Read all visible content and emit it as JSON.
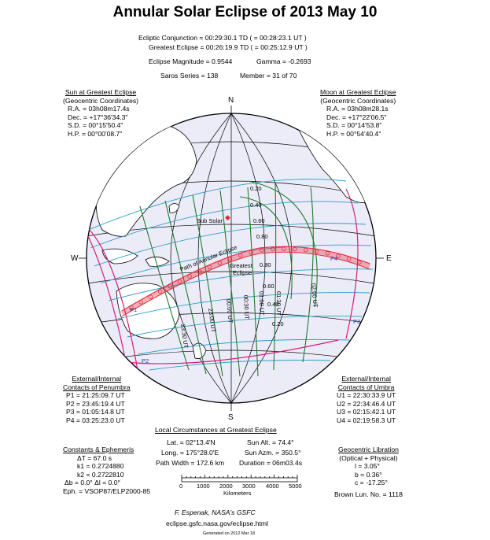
{
  "title": "Annular Solar Eclipse of  2013 May 10",
  "header": {
    "conjunction": "Ecliptic Conjunction = 00:29:30.1 TD   ( = 00:28:23.1 UT )",
    "greatest": "Greatest Eclipse = 00:26:19.9 TD   ( = 00:25:12.9 UT )",
    "magnitude": "Eclipse Magnitude = 0.9544",
    "gamma": "Gamma = -0.2693",
    "saros": "Saros Series = 138",
    "member": "Member = 31 of 70"
  },
  "sun": {
    "title": "Sun at Greatest Eclipse",
    "sub": "(Geocentric Coordinates)",
    "lines": [
      "R.A. = 03h08m17.4s",
      "Dec. = +17°36'34.3\"",
      "S.D. = 00°15'50.4\"",
      "H.P. = 00°00'08.7\""
    ]
  },
  "moon": {
    "title": "Moon at Greatest Eclipse",
    "sub": "(Geocentric Coordinates)",
    "lines": [
      "R.A. = 03h08m28.1s",
      "Dec. = +17°22'06.5\"",
      "S.D. = 00°14'53.8\"",
      "H.P. = 00°54'40.4\""
    ]
  },
  "compass": {
    "n": "N",
    "s": "S",
    "w": "W",
    "e": "E"
  },
  "map": {
    "sub_solar": "Sub Solar",
    "path_label": "Path of Annular Eclipse",
    "greatest_1": "Greatest",
    "greatest_2": "Eclipse",
    "magnitudes": [
      "0.20",
      "0.40",
      "0.60",
      "0.80",
      "0.80",
      "0.60",
      "0.40",
      "0.20"
    ],
    "times": [
      "23:30 UT",
      "23:00 UT",
      "00:00 UT",
      "00:30 UT",
      "01:00 UT",
      "01:30 UT",
      "02:00 UT"
    ],
    "points": [
      "P1",
      "P2",
      "P3",
      "P4"
    ],
    "colors": {
      "globe": "#ececf8",
      "grid": "#2a9fc8",
      "path": "#e8273a",
      "penumbra": "#d81b7a",
      "mag": "#1f7a2e",
      "time": "#1f7a2e",
      "outline": "#000000"
    }
  },
  "penumbra": {
    "title1": "External/Internal",
    "title2": "Contacts of Penumbra",
    "lines": [
      "P1 = 21:25:09.7 UT",
      "P2 = 23:45:19.4 UT",
      "P3 = 01:05:14.8 UT",
      "P4 = 03:25:23.0 UT"
    ]
  },
  "umbra": {
    "title1": "External/Internal",
    "title2": "Contacts of Umbra",
    "lines": [
      "U1 = 22:30:33.9 UT",
      "U2 = 22:34:46.4 UT",
      "U3 = 02:15:42.1 UT",
      "U4 = 02:19:58.3 UT"
    ]
  },
  "local": {
    "title": "Local Circumstances at Greatest Eclipse",
    "lat": "Lat. = 02°13.4'N",
    "long": "Long. = 175°28.0'E",
    "width": "Path Width = 172.6 km",
    "alt": "Sun Alt. = 74.4°",
    "azm": "Sun Azm. = 350.5°",
    "dur": "Duration = 06m03.4s"
  },
  "scale": {
    "ticks": [
      "0",
      "1000",
      "2000",
      "3000",
      "4000",
      "5000"
    ],
    "unit": "Kilometers"
  },
  "constants": {
    "title": "Constants & Ephemeris",
    "lines": [
      "ΔT = 67.0 s",
      "k1 = 0.2724880",
      "k2 = 0.2722810",
      "Δb = 0.0°    Δl = 0.0°",
      "Eph. = VSOP87/ELP2000-85"
    ]
  },
  "libration": {
    "title": "Geocentric Libration",
    "sub": "(Optical + Physical)",
    "lines": [
      "l = 3.05°",
      "b = 0.36°",
      "c = -17.25°"
    ],
    "brown": "Brown Lun. No. = 1118"
  },
  "footer": {
    "author": "F. Espenak, NASA's GSFC",
    "url": "eclipse.gsfc.nasa.gov/eclipse.html",
    "generated": "Generated on 2012 Mar 18"
  }
}
